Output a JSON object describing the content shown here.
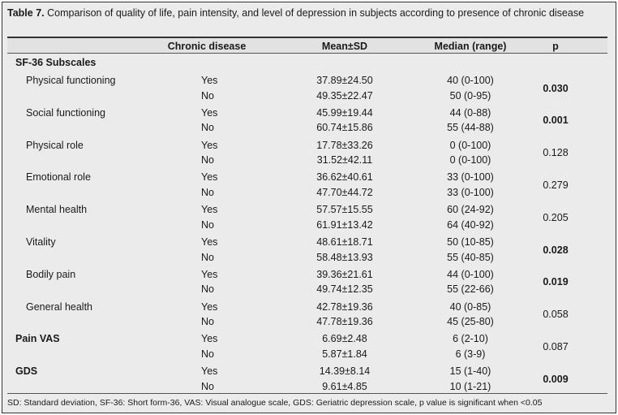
{
  "caption": {
    "label": "Table 7.",
    "text": " Comparison of quality of life, pain intensity, and level of depression in subjects according to presence of chronic disease"
  },
  "headers": [
    "",
    "Chronic disease",
    "Mean±SD",
    "Median (range)",
    "p"
  ],
  "section_label": "SF-36 Subscales",
  "groups": [
    {
      "label": "Physical functioning",
      "indent": true,
      "bold_label": false,
      "p": "0.030",
      "p_bold": true,
      "rows": [
        {
          "cd": "Yes",
          "mean": "37.89±24.50",
          "median": "40 (0-100)"
        },
        {
          "cd": "No",
          "mean": "49.35±22.47",
          "median": "50 (0-95)"
        }
      ]
    },
    {
      "label": "Social functioning",
      "indent": true,
      "bold_label": false,
      "p": "0.001",
      "p_bold": true,
      "rows": [
        {
          "cd": "Yes",
          "mean": "45.99±19.44",
          "median": "44 (0-88)"
        },
        {
          "cd": "No",
          "mean": "60.74±15.86",
          "median": "55 (44-88)"
        }
      ]
    },
    {
      "label": "Physical role",
      "indent": true,
      "bold_label": false,
      "p": "0.128",
      "p_bold": false,
      "rows": [
        {
          "cd": "Yes",
          "mean": "17.78±33.26",
          "median": "0 (0-100)"
        },
        {
          "cd": "No",
          "mean": "31.52±42.11",
          "median": "0 (0-100)"
        }
      ]
    },
    {
      "label": "Emotional role",
      "indent": true,
      "bold_label": false,
      "p": "0.279",
      "p_bold": false,
      "rows": [
        {
          "cd": "Yes",
          "mean": "36.62±40.61",
          "median": "33 (0-100)"
        },
        {
          "cd": "No",
          "mean": "47.70±44.72",
          "median": "33 (0-100)"
        }
      ]
    },
    {
      "label": "Mental health",
      "indent": true,
      "bold_label": false,
      "p": "0.205",
      "p_bold": false,
      "rows": [
        {
          "cd": "Yes",
          "mean": "57.57±15.55",
          "median": "60 (24-92)"
        },
        {
          "cd": "No",
          "mean": "61.91±13.42",
          "median": "64 (40-92)"
        }
      ]
    },
    {
      "label": "Vitality",
      "indent": true,
      "bold_label": false,
      "p": "0.028",
      "p_bold": true,
      "rows": [
        {
          "cd": "Yes",
          "mean": "48.61±18.71",
          "median": "50 (10-85)"
        },
        {
          "cd": "No",
          "mean": "58.48±13.93",
          "median": "55 (40-85)"
        }
      ]
    },
    {
      "label": "Bodily pain",
      "indent": true,
      "bold_label": false,
      "p": "0.019",
      "p_bold": true,
      "rows": [
        {
          "cd": "Yes",
          "mean": "39.36±21.61",
          "median": "44 (0-100)"
        },
        {
          "cd": "No",
          "mean": "49.74±12.35",
          "median": "55 (22-66)"
        }
      ]
    },
    {
      "label": "General health",
      "indent": true,
      "bold_label": false,
      "p": "0.058",
      "p_bold": false,
      "rows": [
        {
          "cd": "Yes",
          "mean": "42.78±19.36",
          "median": "40 (0-85)"
        },
        {
          "cd": "No",
          "mean": "47.78±19.36",
          "median": "45 (25-80)"
        }
      ]
    },
    {
      "label": "Pain VAS",
      "indent": false,
      "bold_label": true,
      "p": "0.087",
      "p_bold": false,
      "rows": [
        {
          "cd": "Yes",
          "mean": "6.69±2.48",
          "median": "6 (2-10)"
        },
        {
          "cd": "No",
          "mean": "5.87±1.84",
          "median": "6 (3-9)"
        }
      ]
    },
    {
      "label": "GDS",
      "indent": false,
      "bold_label": true,
      "p": "0.009",
      "p_bold": true,
      "rows": [
        {
          "cd": "Yes",
          "mean": "14.39±8.14",
          "median": "15 (1-40)"
        },
        {
          "cd": "No",
          "mean": "9.61±4.85",
          "median": "10 (1-21)"
        }
      ]
    }
  ],
  "footnote": "SD: Standard deviation, SF-36: Short form-36, VAS: Visual analogue scale, GDS: Geriatric depression scale,  p value is significant when <0.05"
}
